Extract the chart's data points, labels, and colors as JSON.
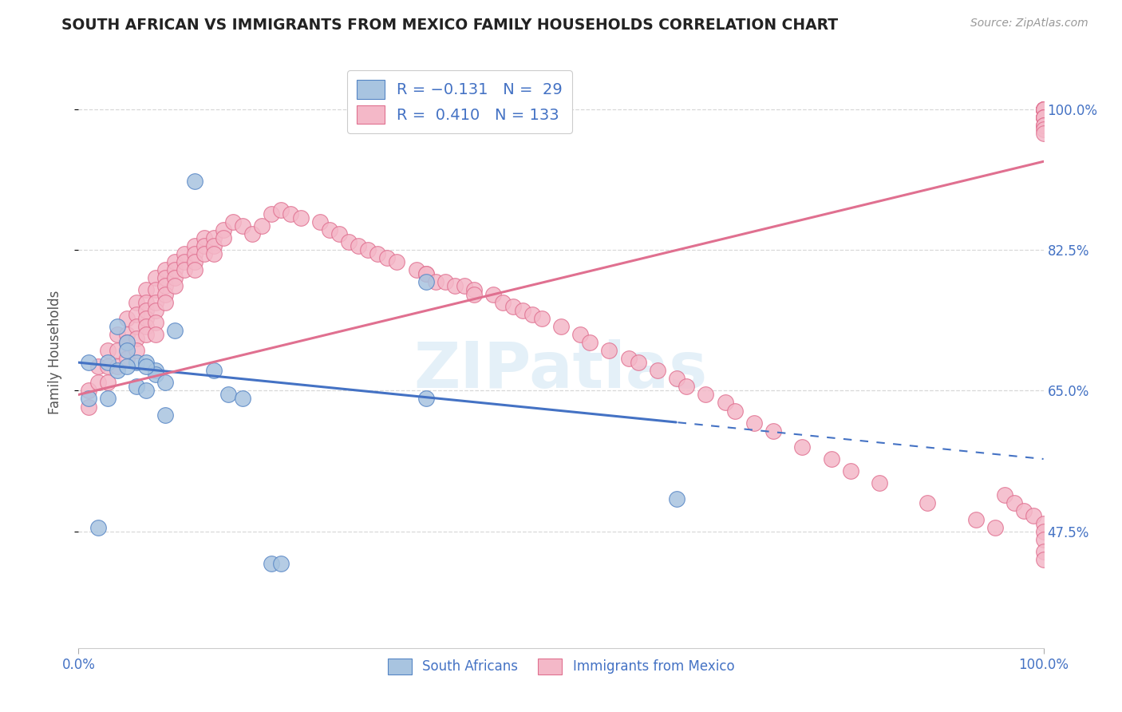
{
  "title": "SOUTH AFRICAN VS IMMIGRANTS FROM MEXICO FAMILY HOUSEHOLDS CORRELATION CHART",
  "source": "Source: ZipAtlas.com",
  "ylabel": "Family Households",
  "ytick_labels": [
    "47.5%",
    "65.0%",
    "82.5%",
    "100.0%"
  ],
  "ytick_values": [
    0.475,
    0.65,
    0.825,
    1.0
  ],
  "xmin": 0.0,
  "xmax": 1.0,
  "ymin": 0.33,
  "ymax": 1.065,
  "blue_line_start_y": 0.685,
  "blue_line_end_solid_x": 0.62,
  "blue_line_end_solid_y": 0.622,
  "blue_line_end_x": 1.0,
  "blue_line_end_y": 0.565,
  "pink_line_start_y": 0.645,
  "pink_line_end_y": 0.935,
  "blue_color": "#a8c4e0",
  "blue_edge_color": "#5585c5",
  "pink_color": "#f4b8c8",
  "pink_edge_color": "#e07090",
  "blue_line_color": "#4472c4",
  "pink_line_color": "#e07090",
  "title_color": "#222222",
  "source_color": "#999999",
  "axis_label_color": "#4472c4",
  "grid_color": "#d8d8d8",
  "watermark": "ZIPatlas",
  "blue_x": [
    0.01,
    0.02,
    0.03,
    0.03,
    0.04,
    0.04,
    0.05,
    0.05,
    0.06,
    0.06,
    0.07,
    0.07,
    0.08,
    0.08,
    0.09,
    0.1,
    0.12,
    0.14,
    0.155,
    0.2,
    0.21,
    0.36,
    0.36,
    0.62,
    0.01,
    0.17,
    0.05,
    0.07,
    0.09
  ],
  "blue_y": [
    0.685,
    0.48,
    0.685,
    0.64,
    0.73,
    0.675,
    0.71,
    0.7,
    0.685,
    0.655,
    0.685,
    0.65,
    0.675,
    0.67,
    0.66,
    0.725,
    0.91,
    0.675,
    0.645,
    0.435,
    0.435,
    0.785,
    0.64,
    0.515,
    0.64,
    0.64,
    0.68,
    0.68,
    0.62
  ],
  "pink_x": [
    0.01,
    0.01,
    0.02,
    0.02,
    0.03,
    0.03,
    0.03,
    0.04,
    0.04,
    0.04,
    0.05,
    0.05,
    0.05,
    0.05,
    0.06,
    0.06,
    0.06,
    0.06,
    0.06,
    0.07,
    0.07,
    0.07,
    0.07,
    0.07,
    0.07,
    0.08,
    0.08,
    0.08,
    0.08,
    0.08,
    0.08,
    0.09,
    0.09,
    0.09,
    0.09,
    0.09,
    0.1,
    0.1,
    0.1,
    0.1,
    0.11,
    0.11,
    0.11,
    0.12,
    0.12,
    0.12,
    0.12,
    0.13,
    0.13,
    0.13,
    0.14,
    0.14,
    0.14,
    0.15,
    0.15,
    0.16,
    0.17,
    0.18,
    0.19,
    0.2,
    0.21,
    0.22,
    0.23,
    0.25,
    0.26,
    0.27,
    0.28,
    0.29,
    0.3,
    0.31,
    0.32,
    0.33,
    0.35,
    0.36,
    0.36,
    0.37,
    0.38,
    0.39,
    0.4,
    0.41,
    0.41,
    0.43,
    0.44,
    0.45,
    0.46,
    0.47,
    0.48,
    0.5,
    0.52,
    0.53,
    0.55,
    0.57,
    0.58,
    0.6,
    0.62,
    0.63,
    0.65,
    0.67,
    0.68,
    0.7,
    0.72,
    0.75,
    0.78,
    0.8,
    0.83,
    0.88,
    0.93,
    0.95,
    0.96,
    0.97,
    0.98,
    0.99,
    1.0,
    1.0,
    1.0,
    1.0,
    1.0,
    1.0,
    1.0,
    1.0,
    1.0,
    1.0,
    1.0,
    1.0,
    1.0,
    1.0,
    1.0,
    1.0,
    1.0,
    1.0,
    1.0,
    1.0,
    1.0
  ],
  "pink_y": [
    0.65,
    0.63,
    0.68,
    0.66,
    0.7,
    0.68,
    0.66,
    0.72,
    0.7,
    0.68,
    0.74,
    0.72,
    0.71,
    0.69,
    0.76,
    0.745,
    0.73,
    0.715,
    0.7,
    0.775,
    0.76,
    0.75,
    0.74,
    0.73,
    0.72,
    0.79,
    0.775,
    0.76,
    0.75,
    0.735,
    0.72,
    0.8,
    0.79,
    0.78,
    0.77,
    0.76,
    0.81,
    0.8,
    0.79,
    0.78,
    0.82,
    0.81,
    0.8,
    0.83,
    0.82,
    0.81,
    0.8,
    0.84,
    0.83,
    0.82,
    0.84,
    0.83,
    0.82,
    0.85,
    0.84,
    0.86,
    0.855,
    0.845,
    0.855,
    0.87,
    0.875,
    0.87,
    0.865,
    0.86,
    0.85,
    0.845,
    0.835,
    0.83,
    0.825,
    0.82,
    0.815,
    0.81,
    0.8,
    0.795,
    0.795,
    0.785,
    0.785,
    0.78,
    0.78,
    0.775,
    0.77,
    0.77,
    0.76,
    0.755,
    0.75,
    0.745,
    0.74,
    0.73,
    0.72,
    0.71,
    0.7,
    0.69,
    0.685,
    0.675,
    0.665,
    0.655,
    0.645,
    0.635,
    0.625,
    0.61,
    0.6,
    0.58,
    0.565,
    0.55,
    0.535,
    0.51,
    0.49,
    0.48,
    0.52,
    0.51,
    0.5,
    0.495,
    1.0,
    1.0,
    1.0,
    1.0,
    1.0,
    1.0,
    1.0,
    1.0,
    0.99,
    0.99,
    0.99,
    0.99,
    0.98,
    0.98,
    0.975,
    0.97,
    0.485,
    0.475,
    0.465,
    0.45,
    0.44
  ]
}
